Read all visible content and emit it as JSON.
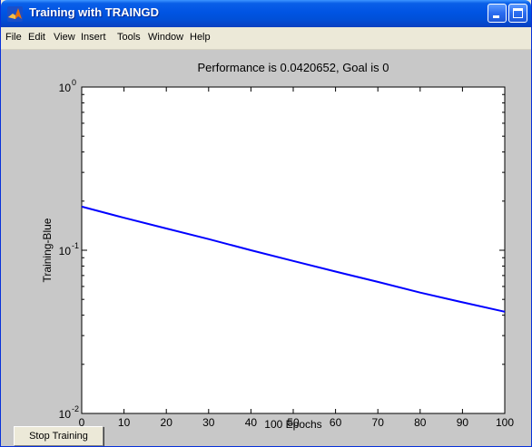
{
  "window": {
    "title": "Training with TRAINGD",
    "icon": "matlab-logo-icon"
  },
  "menu": {
    "items": [
      "File",
      "Edit",
      "View",
      "Insert",
      "Tools",
      "Window",
      "Help"
    ]
  },
  "buttons": {
    "stop_training": "Stop Training"
  },
  "chart_data": {
    "type": "line",
    "title": "Performance is 0.0420652, Goal is 0",
    "xlabel": "100 Epochs",
    "ylabel": "Training-Blue",
    "yscale": "log",
    "xlim": [
      0,
      100
    ],
    "ylim": [
      0.01,
      1
    ],
    "x_ticks": [
      0,
      10,
      20,
      30,
      40,
      50,
      60,
      70,
      80,
      90,
      100
    ],
    "y_ticks": [
      {
        "base": "10",
        "exp": "0",
        "value": 1
      },
      {
        "base": "10",
        "exp": "-1",
        "value": 0.1
      },
      {
        "base": "10",
        "exp": "-2",
        "value": 0.01
      }
    ],
    "grid": false,
    "series": [
      {
        "color": "#0000ff",
        "x": [
          0,
          10,
          20,
          30,
          40,
          50,
          60,
          70,
          80,
          90,
          100
        ],
        "y": [
          0.185,
          0.158,
          0.136,
          0.117,
          0.1,
          0.086,
          0.074,
          0.064,
          0.055,
          0.048,
          0.042
        ]
      }
    ]
  }
}
